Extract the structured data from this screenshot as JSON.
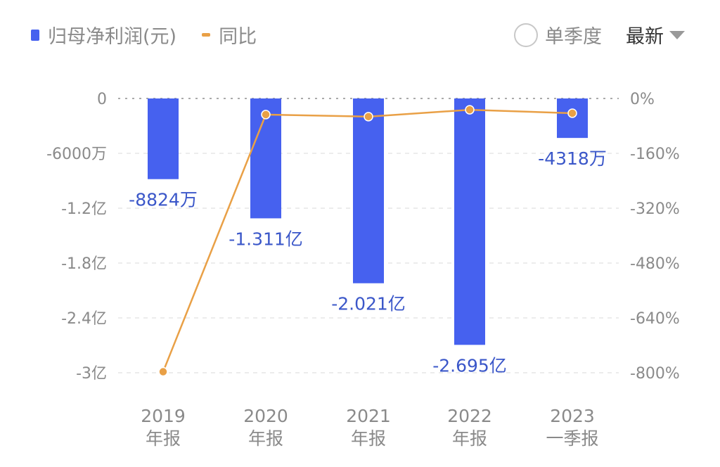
{
  "legend": {
    "bar_label": "归母净利润(元)",
    "line_label": "同比"
  },
  "controls": {
    "single_quarter": "单季度",
    "latest": "最新"
  },
  "colors": {
    "bar": "#4661ef",
    "line": "#e9a046",
    "label": "#3b57c9",
    "tick": "#8a8a8a"
  },
  "chart_data": {
    "type": "bar",
    "categories": [
      [
        "2019",
        "年报"
      ],
      [
        "2020",
        "年报"
      ],
      [
        "2021",
        "年报"
      ],
      [
        "2022",
        "年报"
      ],
      [
        "2023",
        "一季报"
      ]
    ],
    "series": [
      {
        "name": "归母净利润(元)",
        "type": "bar",
        "unit": "万",
        "values": [
          -8824,
          -13110,
          -20210,
          -26950,
          -4318
        ],
        "labels": [
          "-8824万",
          "-1.311亿",
          "-2.021亿",
          "-2.695亿",
          "-4318万"
        ]
      },
      {
        "name": "同比",
        "type": "line",
        "unit": "%",
        "values": [
          -797,
          -47,
          -53,
          -33,
          -43
        ]
      }
    ],
    "left_axis": {
      "ylim": [
        -30000,
        0
      ],
      "ticks": [
        0,
        -6000,
        -12000,
        -18000,
        -24000,
        -30000
      ],
      "tick_labels": [
        "0",
        "-6000万",
        "-1.2亿",
        "-1.8亿",
        "-2.4亿",
        "-3亿"
      ]
    },
    "right_axis": {
      "ylim": [
        -800,
        0
      ],
      "tick_labels": [
        "0%",
        "-160%",
        "-320%",
        "-480%",
        "-640%",
        "-800%"
      ]
    },
    "grid": true
  }
}
